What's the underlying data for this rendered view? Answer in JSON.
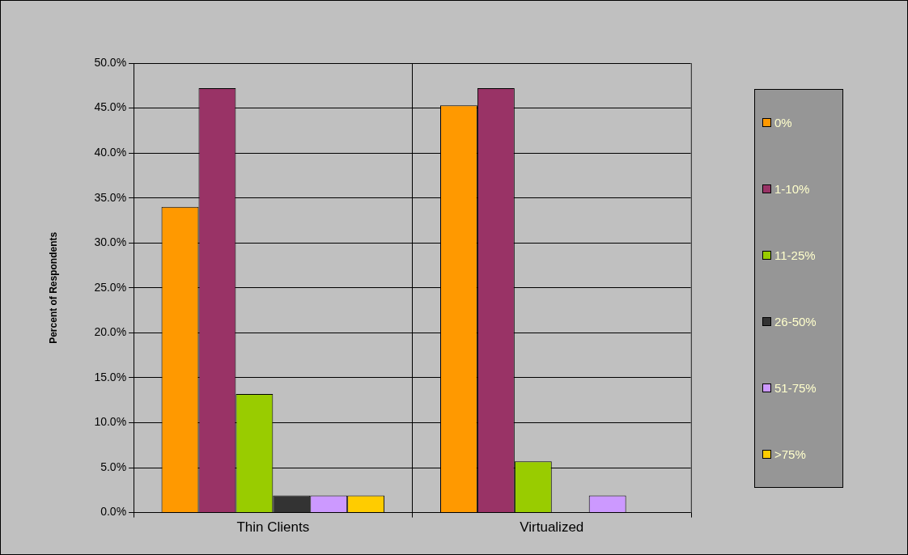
{
  "chart_data": {
    "type": "bar",
    "ylabel": "Percent of Respondents",
    "categories": [
      "Thin Clients",
      "Virtualized"
    ],
    "series": [
      {
        "name": "0%",
        "color": "#ff9900",
        "values": [
          34.0,
          45.3
        ]
      },
      {
        "name": "1-10%",
        "color": "#993366",
        "values": [
          47.2,
          47.2
        ]
      },
      {
        "name": "11-25%",
        "color": "#99cc00",
        "values": [
          13.2,
          5.7
        ]
      },
      {
        "name": "26-50%",
        "color": "#333333",
        "values": [
          1.9,
          0
        ]
      },
      {
        "name": "51-75%",
        "color": "#cc99ff",
        "values": [
          1.9,
          1.9
        ]
      },
      {
        "name": ">75%",
        "color": "#ffcc00",
        "values": [
          1.9,
          0
        ]
      }
    ],
    "ylim": [
      0,
      50
    ],
    "yticks": [
      {
        "value": 0,
        "label": "0.0%"
      },
      {
        "value": 5,
        "label": "5.0%"
      },
      {
        "value": 10,
        "label": "10.0%"
      },
      {
        "value": 15,
        "label": "15.0%"
      },
      {
        "value": 20,
        "label": "20.0%"
      },
      {
        "value": 25,
        "label": "25.0%"
      },
      {
        "value": 30,
        "label": "30.0%"
      },
      {
        "value": 35,
        "label": "35.0%"
      },
      {
        "value": 40,
        "label": "40.0%"
      },
      {
        "value": 45,
        "label": "45.0%"
      },
      {
        "value": 50,
        "label": "50.0%"
      }
    ],
    "grid": true,
    "legend": "right"
  }
}
